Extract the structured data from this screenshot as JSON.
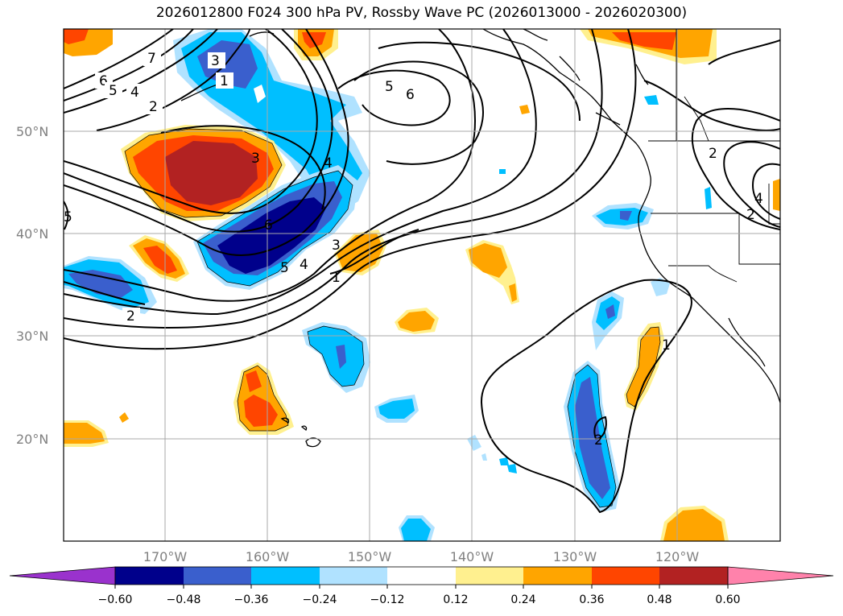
{
  "title": "2026012800 F024 300 hPa PV, Rossby Wave PC (2026013000 - 2026020300)",
  "map": {
    "lat_labels": [
      "50°N",
      "40°N",
      "30°N",
      "20°N"
    ],
    "lon_labels": [
      "170°W",
      "160°W",
      "150°W",
      "140°W",
      "130°W",
      "120°W"
    ],
    "contour_labels": [
      "7",
      "6",
      "5",
      "4",
      "2",
      "3",
      "1",
      "5",
      "6",
      "3",
      "4",
      "6",
      "5",
      "4",
      "3",
      "1",
      "2",
      "2",
      "1",
      "2",
      "4",
      "2",
      "5"
    ]
  },
  "colorbar": {
    "ticks": [
      "−0.60",
      "−0.48",
      "−0.36",
      "−0.24",
      "−0.12",
      "0.12",
      "0.24",
      "0.36",
      "0.48",
      "0.60"
    ],
    "colors": [
      "#9a32cd",
      "#00008b",
      "#3a5fcd",
      "#00bfff",
      "#b0e2ff",
      "#ffffff",
      "#fff08f",
      "#ffa500",
      "#ff4500",
      "#b22222",
      "#ff82ab"
    ]
  }
}
